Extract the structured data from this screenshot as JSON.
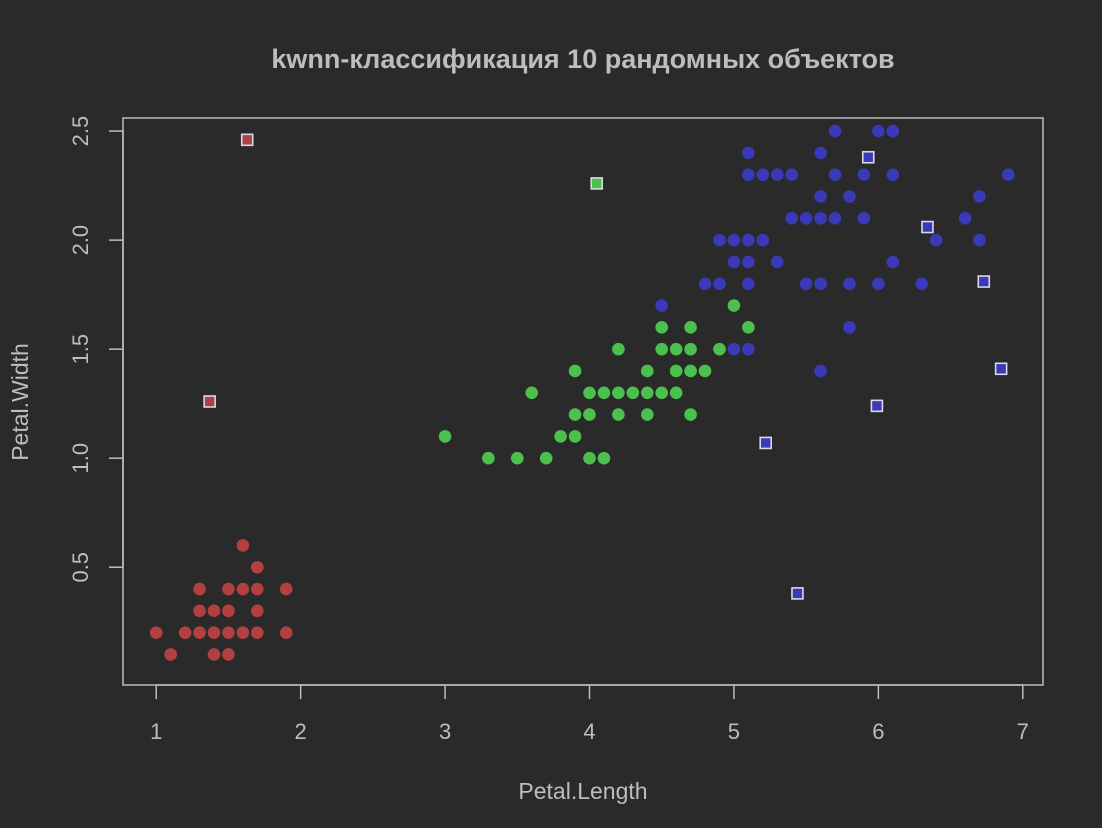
{
  "chart_data": {
    "type": "scatter",
    "title": "kwnn-классификация 10 рандомных объектов",
    "xlabel": "Petal.Length",
    "ylabel": "Petal.Width",
    "xlim": [
      0.77,
      7.14
    ],
    "ylim": [
      -0.04,
      2.56
    ],
    "xticks": [
      "1",
      "2",
      "3",
      "4",
      "5",
      "6",
      "7"
    ],
    "yticks": [
      "0.5",
      "1.0",
      "1.5",
      "2.0",
      "2.5"
    ],
    "colors": {
      "background": "#2a2a2a",
      "axis": "#bdbdbd",
      "text": "#bdbdbd",
      "setosa": "#b24040",
      "versicolor": "#4cc04c",
      "virginica": "#3a3ab8",
      "square_border": "#d8d8e8"
    },
    "series": [
      {
        "marker": "circle",
        "color_key": "setosa",
        "points": [
          [
            1.0,
            0.2
          ],
          [
            1.1,
            0.1
          ],
          [
            1.2,
            0.2
          ],
          [
            1.3,
            0.2
          ],
          [
            1.3,
            0.3
          ],
          [
            1.3,
            0.4
          ],
          [
            1.4,
            0.1
          ],
          [
            1.4,
            0.2
          ],
          [
            1.4,
            0.3
          ],
          [
            1.5,
            0.1
          ],
          [
            1.5,
            0.2
          ],
          [
            1.5,
            0.3
          ],
          [
            1.5,
            0.4
          ],
          [
            1.6,
            0.2
          ],
          [
            1.6,
            0.4
          ],
          [
            1.6,
            0.6
          ],
          [
            1.7,
            0.2
          ],
          [
            1.7,
            0.3
          ],
          [
            1.7,
            0.4
          ],
          [
            1.7,
            0.5
          ],
          [
            1.9,
            0.2
          ],
          [
            1.9,
            0.4
          ]
        ]
      },
      {
        "marker": "circle",
        "color_key": "versicolor",
        "points": [
          [
            3.0,
            1.1
          ],
          [
            3.3,
            1.0
          ],
          [
            3.5,
            1.0
          ],
          [
            3.6,
            1.3
          ],
          [
            3.7,
            1.0
          ],
          [
            3.8,
            1.1
          ],
          [
            3.9,
            1.1
          ],
          [
            3.9,
            1.2
          ],
          [
            3.9,
            1.4
          ],
          [
            4.0,
            1.0
          ],
          [
            4.0,
            1.2
          ],
          [
            4.0,
            1.3
          ],
          [
            4.1,
            1.0
          ],
          [
            4.1,
            1.3
          ],
          [
            4.2,
            1.2
          ],
          [
            4.2,
            1.3
          ],
          [
            4.2,
            1.5
          ],
          [
            4.3,
            1.3
          ],
          [
            4.4,
            1.2
          ],
          [
            4.4,
            1.3
          ],
          [
            4.4,
            1.4
          ],
          [
            4.5,
            1.3
          ],
          [
            4.5,
            1.5
          ],
          [
            4.5,
            1.6
          ],
          [
            4.6,
            1.3
          ],
          [
            4.6,
            1.4
          ],
          [
            4.6,
            1.5
          ],
          [
            4.7,
            1.2
          ],
          [
            4.7,
            1.4
          ],
          [
            4.7,
            1.5
          ],
          [
            4.7,
            1.6
          ],
          [
            4.8,
            1.4
          ],
          [
            4.9,
            1.5
          ],
          [
            5.0,
            1.7
          ],
          [
            5.1,
            1.6
          ]
        ]
      },
      {
        "marker": "circle",
        "color_key": "virginica",
        "points": [
          [
            4.5,
            1.7
          ],
          [
            4.8,
            1.8
          ],
          [
            4.9,
            1.8
          ],
          [
            4.9,
            2.0
          ],
          [
            5.0,
            1.5
          ],
          [
            5.0,
            1.9
          ],
          [
            5.0,
            2.0
          ],
          [
            5.1,
            1.5
          ],
          [
            5.1,
            1.8
          ],
          [
            5.1,
            1.9
          ],
          [
            5.1,
            2.0
          ],
          [
            5.1,
            2.3
          ],
          [
            5.1,
            2.4
          ],
          [
            5.2,
            2.0
          ],
          [
            5.2,
            2.3
          ],
          [
            5.3,
            1.9
          ],
          [
            5.3,
            2.3
          ],
          [
            5.4,
            2.1
          ],
          [
            5.4,
            2.3
          ],
          [
            5.5,
            1.8
          ],
          [
            5.5,
            2.1
          ],
          [
            5.6,
            1.4
          ],
          [
            5.6,
            1.8
          ],
          [
            5.6,
            2.1
          ],
          [
            5.6,
            2.2
          ],
          [
            5.6,
            2.4
          ],
          [
            5.7,
            2.1
          ],
          [
            5.7,
            2.3
          ],
          [
            5.7,
            2.5
          ],
          [
            5.8,
            1.6
          ],
          [
            5.8,
            1.8
          ],
          [
            5.8,
            2.2
          ],
          [
            5.9,
            2.1
          ],
          [
            5.9,
            2.3
          ],
          [
            6.0,
            1.8
          ],
          [
            6.0,
            2.5
          ],
          [
            6.1,
            1.9
          ],
          [
            6.1,
            2.3
          ],
          [
            6.1,
            2.5
          ],
          [
            6.3,
            1.8
          ],
          [
            6.4,
            2.0
          ],
          [
            6.6,
            2.1
          ],
          [
            6.7,
            2.0
          ],
          [
            6.7,
            2.2
          ],
          [
            6.9,
            2.3
          ]
        ]
      },
      {
        "marker": "square",
        "color_key": "setosa",
        "points": [
          [
            1.63,
            2.46
          ],
          [
            1.37,
            1.26
          ]
        ]
      },
      {
        "marker": "square",
        "color_key": "versicolor",
        "points": [
          [
            4.05,
            2.26
          ]
        ]
      },
      {
        "marker": "square",
        "color_key": "virginica",
        "points": [
          [
            5.93,
            2.38
          ],
          [
            6.34,
            2.06
          ],
          [
            6.73,
            1.81
          ],
          [
            6.85,
            1.41
          ],
          [
            5.99,
            1.24
          ],
          [
            5.22,
            1.07
          ],
          [
            5.44,
            0.38
          ]
        ]
      }
    ]
  }
}
